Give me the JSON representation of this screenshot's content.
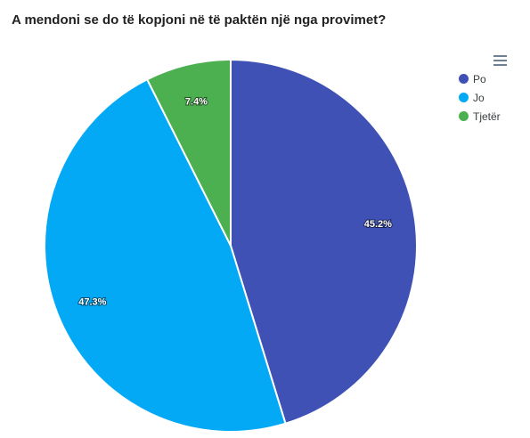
{
  "title": "A mendoni se do të kopjoni në të paktën një nga provimet?",
  "menu_icon": "hamburger-menu-icon",
  "chart_data": {
    "type": "pie",
    "title": "A mendoni se do të kopjoni në të paktën një nga provimet?",
    "categories": [
      "Po",
      "Jo",
      "Tjetër"
    ],
    "values": [
      45.2,
      47.3,
      7.4
    ],
    "labels": [
      "45.2%",
      "47.3%",
      "7.4%"
    ],
    "colors": [
      "#3f51b5",
      "#03a9f4",
      "#4caf50"
    ],
    "legend_position": "top-right"
  }
}
